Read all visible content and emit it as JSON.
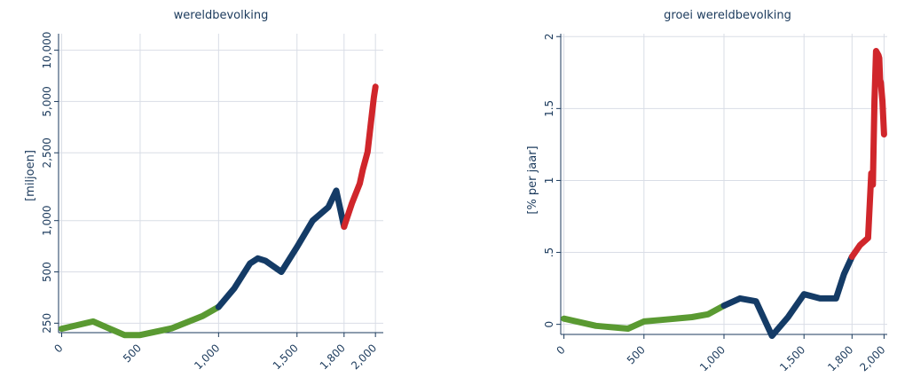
{
  "colors": {
    "text": "#1b3a5c",
    "grid": "#d9dde6",
    "period_early": "#5a9a32",
    "period_middle": "#143b66",
    "period_modern": "#d0262b"
  },
  "chart_data": [
    {
      "type": "line",
      "title": "wereldbevolking",
      "xlabel": "",
      "ylabel": "[miljoen]",
      "y_scale": "log",
      "xlim": [
        -20,
        2050
      ],
      "ylim": [
        220,
        12500
      ],
      "x_ticks": [
        0,
        500,
        1000,
        1500,
        1800,
        2000
      ],
      "x_tick_labels": [
        "0",
        "500",
        "1,000",
        "1,500",
        "1,800",
        "2,000"
      ],
      "y_ticks": [
        250,
        500,
        1000,
        2500,
        5000,
        10000
      ],
      "y_tick_labels": [
        "250",
        "500",
        "1,000",
        "2,500",
        "5,000",
        "10,000"
      ],
      "grid": true,
      "series": [
        {
          "color_key": "period_early",
          "x": [
            0,
            200,
            400,
            500,
            700,
            900,
            1000
          ],
          "y": [
            232,
            256,
            213,
            213,
            233,
            276,
            311
          ]
        },
        {
          "color_key": "period_middle",
          "x": [
            1000,
            1100,
            1200,
            1250,
            1300,
            1400,
            1500,
            1600,
            1700,
            1750,
            1800
          ],
          "y": [
            311,
            400,
            560,
            600,
            580,
            500,
            700,
            1000,
            1200,
            1500,
            920
          ]
        },
        {
          "color_key": "period_modern",
          "x": [
            1800,
            1850,
            1900,
            1920,
            1950,
            1970,
            1990,
            2000
          ],
          "y": [
            920,
            1260,
            1650,
            2000,
            2530,
            3700,
            5300,
            6100
          ]
        }
      ]
    },
    {
      "type": "line",
      "title": "groei wereldbevolking",
      "xlabel": "",
      "ylabel": "[% per jaar]",
      "xlim": [
        -20,
        2020
      ],
      "ylim": [
        -0.07,
        2.02
      ],
      "x_ticks": [
        0,
        500,
        1000,
        1500,
        1800,
        2000
      ],
      "x_tick_labels": [
        "0",
        "500",
        "1,000",
        "1,500",
        "1,800",
        "2,000"
      ],
      "y_ticks": [
        0,
        0.5,
        1,
        1.5,
        2
      ],
      "y_tick_labels": [
        "0",
        ".5",
        "1",
        "1.5",
        "2"
      ],
      "grid": true,
      "series": [
        {
          "color_key": "period_early",
          "x": [
            0,
            200,
            400,
            500,
            600,
            700,
            800,
            900,
            1000
          ],
          "y": [
            0.04,
            -0.01,
            -0.03,
            0.02,
            0.03,
            0.04,
            0.05,
            0.07,
            0.13
          ]
        },
        {
          "color_key": "period_middle",
          "x": [
            1000,
            1100,
            1200,
            1300,
            1400,
            1500,
            1600,
            1700,
            1750,
            1800
          ],
          "y": [
            0.13,
            0.18,
            0.16,
            -0.08,
            0.05,
            0.21,
            0.18,
            0.18,
            0.35,
            0.47
          ]
        },
        {
          "color_key": "period_modern",
          "x": [
            1800,
            1850,
            1900,
            1920,
            1930,
            1940,
            1950,
            1960,
            1965,
            1970,
            1975,
            1980,
            1990,
            2000
          ],
          "y": [
            0.47,
            0.55,
            0.6,
            1.05,
            0.97,
            1.55,
            1.9,
            1.88,
            1.87,
            1.85,
            1.7,
            1.68,
            1.55,
            1.32
          ]
        }
      ]
    }
  ]
}
